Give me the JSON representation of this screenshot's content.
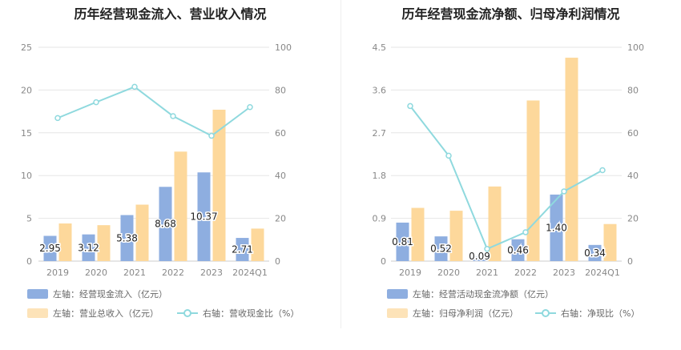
{
  "chart_data": [
    {
      "type": "bar",
      "title": "历年经营现金流入、营业收入情况",
      "categories": [
        "2019",
        "2020",
        "2021",
        "2022",
        "2023",
        "2024Q1"
      ],
      "series": [
        {
          "name": "左轴：经营现金流入（亿元）",
          "axis": "left",
          "kind": "bar",
          "color": "#8eaee0",
          "values": [
            2.95,
            3.12,
            5.38,
            8.68,
            10.37,
            2.71
          ],
          "labels": [
            "2.95",
            "3.12",
            "5.38",
            "8.68",
            "10.37",
            "2.71"
          ]
        },
        {
          "name": "左轴：营业总收入（亿元）",
          "axis": "left",
          "kind": "bar",
          "color": "#fdd89b",
          "values": [
            4.4,
            4.2,
            6.6,
            12.8,
            17.7,
            3.8
          ]
        },
        {
          "name": "右轴：营收现金比（%）",
          "axis": "right",
          "kind": "line",
          "color": "#8fd9de",
          "values": [
            66.9,
            74.3,
            81.5,
            67.8,
            58.6,
            72.0
          ]
        }
      ],
      "left_axis": {
        "ticks": [
          "0",
          "5",
          "10",
          "15",
          "20",
          "25"
        ],
        "min": 0,
        "max": 25
      },
      "right_axis": {
        "ticks": [
          "0",
          "20",
          "40",
          "60",
          "80",
          "100"
        ],
        "min": 0,
        "max": 100
      },
      "grid": true,
      "legend_position": "bottom-left"
    },
    {
      "type": "bar",
      "title": "历年经营现金流净额、归母净利润情况",
      "categories": [
        "2019",
        "2020",
        "2021",
        "2022",
        "2023",
        "2024Q1"
      ],
      "series": [
        {
          "name": "左轴：经营活动现金流净额（亿元）",
          "axis": "left",
          "kind": "bar",
          "color": "#8eaee0",
          "values": [
            0.81,
            0.52,
            0.09,
            0.46,
            1.4,
            0.34
          ],
          "labels": [
            "0.81",
            "0.52",
            "0.09",
            "0.46",
            "1.40",
            "0.34"
          ]
        },
        {
          "name": "左轴：归母净利润（亿元）",
          "axis": "left",
          "kind": "bar",
          "color": "#fdd89b",
          "values": [
            1.12,
            1.06,
            1.57,
            3.38,
            4.28,
            0.78
          ]
        },
        {
          "name": "右轴：净现比（%）",
          "axis": "right",
          "kind": "line",
          "color": "#8fd9de",
          "values": [
            72.5,
            49.3,
            5.7,
            13.5,
            32.6,
            42.5
          ]
        }
      ],
      "left_axis": {
        "ticks": [
          "0",
          "0.9",
          "1.8",
          "2.7",
          "3.6",
          "4.5"
        ],
        "min": 0,
        "max": 4.5
      },
      "right_axis": {
        "ticks": [
          "0",
          "20",
          "40",
          "60",
          "80",
          "100"
        ],
        "min": 0,
        "max": 100
      },
      "grid": true,
      "legend_position": "bottom-left"
    }
  ]
}
